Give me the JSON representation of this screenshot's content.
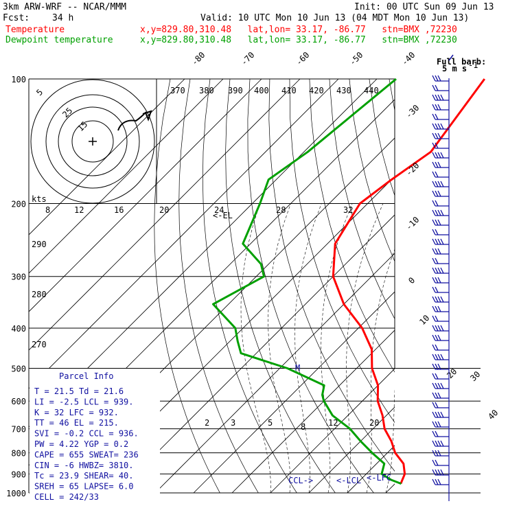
{
  "header": {
    "model": "3km ARW-WRF -- NCAR/MMM",
    "init": "Init: 00 UTC Sun 09 Jun 13",
    "fcst_label": "Fcst:",
    "fcst_value": "34 h",
    "valid": "Valid: 10 UTC Mon 10 Jun 13 (04 MDT Mon 10 Jun 13)",
    "temp_label": "Temperature",
    "dew_label": "Dewpoint temperature",
    "location": "x,y=829.80,310.48   lat,lon= 33.17, -86.77   stn=BMX ,72230"
  },
  "colors": {
    "temperature": "#ff0000",
    "dewpoint": "#00a000",
    "barb": "#1010a0",
    "grid": "#000000"
  },
  "chart_data": {
    "type": "line",
    "title": "",
    "pressure_levels": [
      "100",
      "200",
      "300",
      "400",
      "500",
      "600",
      "700",
      "800",
      "900",
      "1000"
    ],
    "isotherm_labels": [
      "-80",
      "-70",
      "-60",
      "-50",
      "-40",
      "-30",
      "-20",
      "-10",
      "0",
      "10",
      "20",
      "30",
      "40"
    ],
    "theta_labels": [
      "370",
      "380",
      "390",
      "400",
      "410",
      "420",
      "430",
      "440"
    ],
    "theta_left_labels": [
      "290",
      "280",
      "270"
    ],
    "mixing_ratio_labels": [
      "2",
      "3",
      "5",
      "8",
      "12",
      "20"
    ],
    "upper_labels": [
      "8",
      "12",
      "16",
      "20",
      "24",
      "28",
      "32"
    ],
    "series": [
      {
        "name": "Temperature",
        "points": [
          [
            100,
            -62
          ],
          [
            150,
            -57
          ],
          [
            175,
            -60
          ],
          [
            200,
            -62
          ],
          [
            250,
            -58
          ],
          [
            300,
            -50
          ],
          [
            350,
            -40
          ],
          [
            400,
            -29
          ],
          [
            450,
            -21
          ],
          [
            500,
            -16
          ],
          [
            550,
            -10
          ],
          [
            600,
            -6
          ],
          [
            650,
            -1
          ],
          [
            700,
            3
          ],
          [
            750,
            8
          ],
          [
            800,
            12
          ],
          [
            850,
            17
          ],
          [
            900,
            20
          ],
          [
            950,
            21.5
          ]
        ]
      },
      {
        "name": "Dewpoint temperature",
        "points": [
          [
            100,
            -85
          ],
          [
            150,
            -89
          ],
          [
            175,
            -92
          ],
          [
            200,
            -88
          ],
          [
            250,
            -82
          ],
          [
            280,
            -72
          ],
          [
            300,
            -68
          ],
          [
            350,
            -74
          ],
          [
            400,
            -62
          ],
          [
            430,
            -58
          ],
          [
            460,
            -54
          ],
          [
            500,
            -38
          ],
          [
            550,
            -24
          ],
          [
            580,
            -22
          ],
          [
            600,
            -20
          ],
          [
            650,
            -14
          ],
          [
            700,
            -6
          ],
          [
            750,
            0
          ],
          [
            800,
            6
          ],
          [
            850,
            12
          ],
          [
            900,
            14
          ],
          [
            930,
            18
          ],
          [
            950,
            21.6
          ]
        ]
      }
    ],
    "annotations": {
      "el": "<-EL",
      "ccl": "CCL->",
      "lcl": "<-LCL",
      "lfc": "<-LFC",
      "m": "M",
      "kts": "kts"
    },
    "hodograph_rings": [
      "5",
      "25",
      "15"
    ],
    "full_barb": "Full barb:",
    "full_barb_value": "5 m s",
    "full_barb_exp": "-1"
  },
  "parcel": {
    "title": "Parcel Info",
    "rows": [
      "T  =   21.5  Td =  21.6",
      "LI =   -2.5  LCL =  939.",
      "K  =     32  LFC =  932.",
      "TT =     46  EL  =  215.",
      "SVI =  -0.2  CCL =  936.",
      "PW =   4.22  YGP =   0.2",
      "CAPE =  655  SWEAT=  236",
      "CIN =    -6  HWBZ= 3810.",
      "Tc =   23.9  SHEAR=  40.",
      "SREH =   65  LAPSE=  6.0",
      "CELL = 242/33"
    ]
  }
}
